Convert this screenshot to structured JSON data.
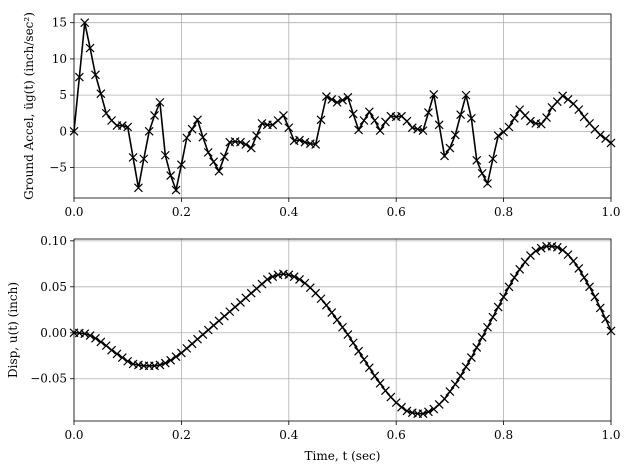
{
  "chart_data": [
    {
      "type": "line",
      "ylabel": "Ground Accel, üg(t) (inch/sec²)",
      "color": "#000000",
      "marker": "x",
      "grid": true,
      "x": [
        0,
        0.01,
        0.02,
        0.03,
        0.04,
        0.05,
        0.06,
        0.07,
        0.08,
        0.09,
        0.1,
        0.11,
        0.12,
        0.13,
        0.14,
        0.15,
        0.16,
        0.17,
        0.18,
        0.19,
        0.2,
        0.21,
        0.22,
        0.23,
        0.24,
        0.25,
        0.26,
        0.27,
        0.28,
        0.29,
        0.3,
        0.31,
        0.32,
        0.33,
        0.34,
        0.35,
        0.36,
        0.37,
        0.38,
        0.39,
        0.4,
        0.41,
        0.42,
        0.43,
        0.44,
        0.45,
        0.46,
        0.47,
        0.48,
        0.49,
        0.5,
        0.51,
        0.52,
        0.53,
        0.54,
        0.55,
        0.56,
        0.57,
        0.58,
        0.59,
        0.6,
        0.61,
        0.62,
        0.63,
        0.64,
        0.65,
        0.66,
        0.67,
        0.68,
        0.69,
        0.7,
        0.71,
        0.72,
        0.73,
        0.74,
        0.75,
        0.76,
        0.77,
        0.78,
        0.79,
        0.8,
        0.81,
        0.82,
        0.83,
        0.84,
        0.85,
        0.86,
        0.87,
        0.88,
        0.89,
        0.9,
        0.91,
        0.92,
        0.93,
        0.94,
        0.95,
        0.96,
        0.97,
        0.98,
        0.99,
        1
      ],
      "values": [
        0,
        7.5,
        15,
        11.5,
        7.8,
        5.2,
        2.5,
        1.5,
        0.8,
        0.8,
        0.6,
        -3.6,
        -7.8,
        -3.8,
        0,
        2.2,
        4,
        -3.3,
        -6.1,
        -8.1,
        -4.6,
        -0.9,
        0.3,
        1.6,
        -0.8,
        -2.9,
        -4.2,
        -5.5,
        -3.5,
        -1.5,
        -1.4,
        -1.5,
        -1.8,
        -2.3,
        -0.6,
        1.1,
        0.9,
        0.9,
        1.5,
        2.2,
        0.5,
        -1.3,
        -1.2,
        -1.5,
        -1.7,
        -1.8,
        1.6,
        4.8,
        4.4,
        4,
        4.3,
        4.7,
        2.4,
        0.2,
        1.5,
        2.7,
        1.5,
        0.1,
        1.3,
        2.1,
        2,
        2.1,
        1.4,
        0.5,
        0.3,
        0.1,
        2.6,
        5.1,
        0.9,
        -3.4,
        -2.3,
        -0.5,
        2.3,
        5,
        1.8,
        -4,
        -5.8,
        -7.2,
        -3.8,
        -0.6,
        -0.1,
        0.6,
        1.8,
        3,
        2.2,
        1.4,
        1.1,
        1,
        1.9,
        3.3,
        4.1,
        4.9,
        4.4,
        3.8,
        3,
        2,
        1.1,
        0.3,
        -0.5,
        -1,
        -1.6
      ],
      "xlim": [
        0,
        1
      ],
      "xticks": [
        {
          "value": 0,
          "label": "0.0"
        },
        {
          "value": 0.2,
          "label": "0.2"
        },
        {
          "value": 0.4,
          "label": "0.4"
        },
        {
          "value": 0.6,
          "label": "0.6"
        },
        {
          "value": 0.8,
          "label": "0.8"
        },
        {
          "value": 1,
          "label": "1.0"
        }
      ],
      "ylim": [
        -9.2,
        16.2
      ],
      "yticks": [
        {
          "value": -5,
          "label": "−5"
        },
        0,
        5,
        10,
        15
      ]
    },
    {
      "type": "line",
      "ylabel": "Disp, u(t) (inch)",
      "xlabel": "Time, t (sec)",
      "color": "#000000",
      "marker": "x",
      "grid": true,
      "x": [
        0,
        0.01,
        0.02,
        0.03,
        0.04,
        0.05,
        0.06,
        0.07,
        0.08,
        0.09,
        0.1,
        0.11,
        0.12,
        0.13,
        0.14,
        0.15,
        0.16,
        0.17,
        0.18,
        0.19,
        0.2,
        0.21,
        0.22,
        0.23,
        0.24,
        0.25,
        0.26,
        0.27,
        0.28,
        0.29,
        0.3,
        0.31,
        0.32,
        0.33,
        0.34,
        0.35,
        0.36,
        0.37,
        0.38,
        0.39,
        0.4,
        0.41,
        0.42,
        0.43,
        0.44,
        0.45,
        0.46,
        0.47,
        0.48,
        0.49,
        0.5,
        0.51,
        0.52,
        0.53,
        0.54,
        0.55,
        0.56,
        0.57,
        0.58,
        0.59,
        0.6,
        0.61,
        0.62,
        0.63,
        0.64,
        0.65,
        0.66,
        0.67,
        0.68,
        0.69,
        0.7,
        0.71,
        0.72,
        0.73,
        0.74,
        0.75,
        0.76,
        0.77,
        0.78,
        0.79,
        0.8,
        0.81,
        0.82,
        0.83,
        0.84,
        0.85,
        0.86,
        0.87,
        0.88,
        0.89,
        0.9,
        0.91,
        0.92,
        0.93,
        0.94,
        0.95,
        0.96,
        0.97,
        0.98,
        0.99,
        1
      ],
      "values": [
        0,
        -0.0003,
        -0.001,
        -0.003,
        -0.006,
        -0.01,
        -0.014,
        -0.019,
        -0.023,
        -0.027,
        -0.031,
        -0.034,
        -0.035,
        -0.036,
        -0.036,
        -0.036,
        -0.035,
        -0.033,
        -0.03,
        -0.026,
        -0.022,
        -0.017,
        -0.012,
        -0.007,
        -0.002,
        0.003,
        0.008,
        0.013,
        0.018,
        0.023,
        0.028,
        0.033,
        0.038,
        0.043,
        0.048,
        0.053,
        0.058,
        0.061,
        0.063,
        0.064,
        0.063,
        0.061,
        0.058,
        0.054,
        0.049,
        0.043,
        0.037,
        0.03,
        0.022,
        0.014,
        0.006,
        -0.002,
        -0.011,
        -0.02,
        -0.029,
        -0.038,
        -0.047,
        -0.055,
        -0.063,
        -0.07,
        -0.076,
        -0.081,
        -0.085,
        -0.087,
        -0.088,
        -0.088,
        -0.086,
        -0.083,
        -0.078,
        -0.072,
        -0.064,
        -0.056,
        -0.047,
        -0.037,
        -0.027,
        -0.016,
        -0.005,
        0.006,
        0.017,
        0.028,
        0.039,
        0.05,
        0.06,
        0.069,
        0.077,
        0.084,
        0.089,
        0.092,
        0.094,
        0.094,
        0.093,
        0.09,
        0.085,
        0.078,
        0.07,
        0.06,
        0.05,
        0.039,
        0.027,
        0.015,
        0.002
      ],
      "xlim": [
        0,
        1
      ],
      "xticks": [
        {
          "value": 0,
          "label": "0.0"
        },
        {
          "value": 0.2,
          "label": "0.2"
        },
        {
          "value": 0.4,
          "label": "0.4"
        },
        {
          "value": 0.6,
          "label": "0.6"
        },
        {
          "value": 0.8,
          "label": "0.8"
        },
        {
          "value": 1,
          "label": "1.0"
        }
      ],
      "ylim": [
        -0.096,
        0.102
      ],
      "yticks": [
        {
          "value": -0.05,
          "label": "−0.05"
        },
        {
          "value": 0,
          "label": "0.00"
        },
        {
          "value": 0.05,
          "label": "0.05"
        },
        {
          "value": 0.1,
          "label": "0.10"
        }
      ]
    }
  ]
}
